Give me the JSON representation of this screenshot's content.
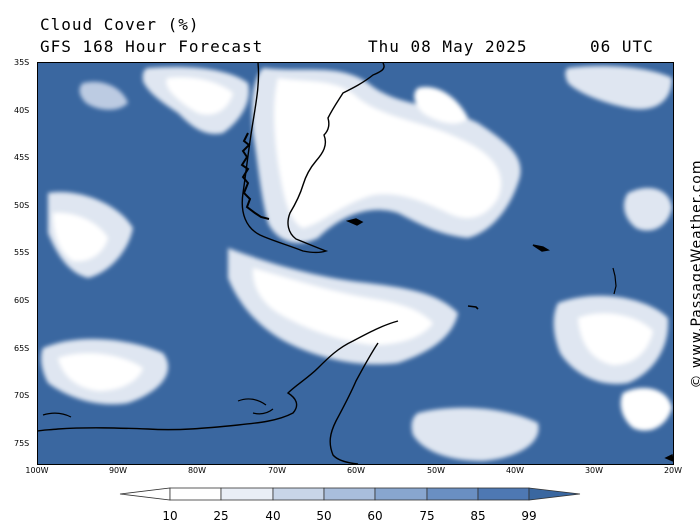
{
  "header": {
    "title": "Cloud Cover (%)",
    "subtitle": "GFS 168 Hour Forecast",
    "date": "Thu 08 May 2025",
    "time": "06 UTC"
  },
  "watermark": "© www.PassageWeather.com",
  "map": {
    "lat_labels": [
      "35S",
      "40S",
      "45S",
      "50S",
      "55S",
      "60S",
      "65S",
      "70S",
      "75S"
    ],
    "lon_labels": [
      "100W",
      "90W",
      "80W",
      "70W",
      "60W",
      "50W",
      "40W",
      "30W",
      "20W"
    ],
    "ocean_color": "#3a67a0",
    "cloud_colors": [
      "#ffffff",
      "#dfe6f1",
      "#bccbe2",
      "#8faacd"
    ]
  },
  "legend": {
    "values": [
      "10",
      "25",
      "40",
      "50",
      "60",
      "75",
      "85",
      "99"
    ],
    "colors": [
      "#ffffff",
      "#ffffff",
      "#e9eef6",
      "#c8d5e8",
      "#a9bedc",
      "#88a6cf",
      "#6a8fc2",
      "#4e78b3",
      "#3a67a0"
    ]
  }
}
